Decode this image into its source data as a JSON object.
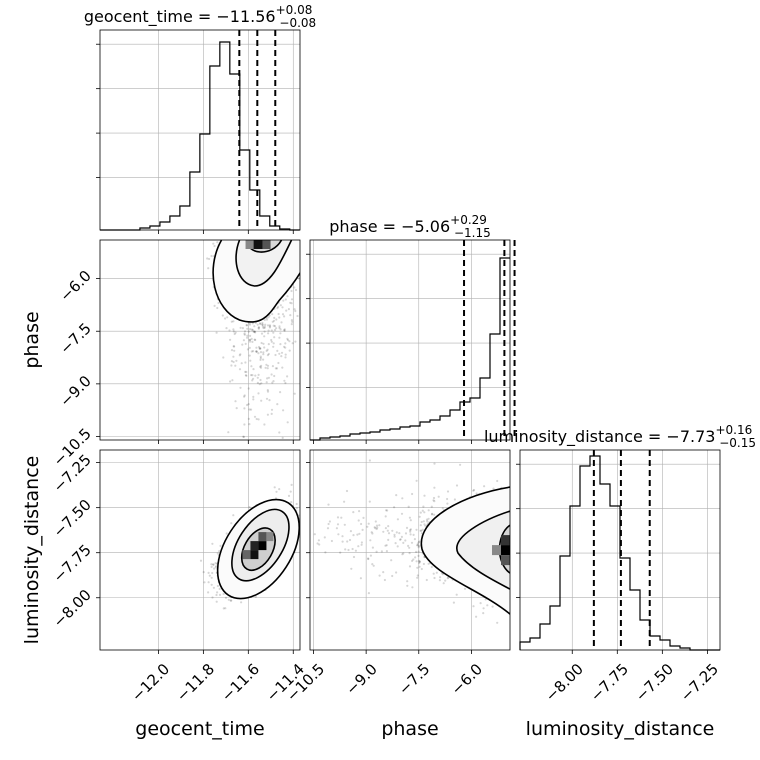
{
  "chart_data": {
    "type": "corner",
    "parameters": [
      "geocent_time",
      "phase",
      "luminosity_distance"
    ],
    "axis_labels": [
      "geocent_time",
      "phase",
      "luminosity_distance"
    ],
    "ranges": {
      "geocent_time": [
        -12.26,
        -11.37
      ],
      "phase": [
        -10.6,
        -4.9
      ],
      "luminosity_distance": [
        -8.29,
        -7.18
      ]
    },
    "ticks": {
      "geocent_time": [
        {
          "value": -12.0,
          "label": "−12.0"
        },
        {
          "value": -11.8,
          "label": "−11.8"
        },
        {
          "value": -11.6,
          "label": "−11.6"
        },
        {
          "value": -11.4,
          "label": "−11.4"
        }
      ],
      "phase": [
        {
          "value": -10.5,
          "label": "−10.5"
        },
        {
          "value": -9.0,
          "label": "−9.0"
        },
        {
          "value": -7.5,
          "label": "−7.5"
        },
        {
          "value": -6.0,
          "label": "−6.0"
        }
      ],
      "luminosity_distance": [
        {
          "value": -8.0,
          "label": "−8.00"
        },
        {
          "value": -7.75,
          "label": "−7.75"
        },
        {
          "value": -7.5,
          "label": "−7.50"
        },
        {
          "value": -7.25,
          "label": "−7.25"
        }
      ]
    },
    "summaries": {
      "geocent_time": {
        "name": "geocent_time",
        "median": "−11.56",
        "plus": "+0.08",
        "minus": "−0.08",
        "quantiles": [
          -11.64,
          -11.56,
          -11.48
        ]
      },
      "phase": {
        "name": "phase",
        "median": "−5.06",
        "plus": "+0.29",
        "minus": "−1.15",
        "quantiles": [
          -6.21,
          -5.06,
          -4.77
        ]
      },
      "luminosity_distance": {
        "name": "luminosity_distance",
        "median": "−7.73",
        "plus": "+0.16",
        "minus": "−0.15",
        "quantiles": [
          -7.88,
          -7.73,
          -7.57
        ]
      }
    },
    "histograms": {
      "geocent_time": {
        "start": -12.26,
        "step": 0.04444,
        "counts": [
          0,
          0,
          0,
          0,
          0.01,
          0.02,
          0.04,
          0.07,
          0.12,
          0.29,
          0.48,
          0.82,
          0.94,
          0.78,
          0.4,
          0.2,
          0.07,
          0.02,
          0.005,
          0.0
        ]
      },
      "phase": {
        "start": -10.6,
        "step": 0.285,
        "counts": [
          0,
          0.01,
          0.015,
          0.02,
          0.03,
          0.035,
          0.04,
          0.05,
          0.055,
          0.065,
          0.07,
          0.09,
          0.1,
          0.12,
          0.15,
          0.19,
          0.21,
          0.31,
          0.53,
          0.91
        ]
      },
      "luminosity_distance": {
        "start": -8.29,
        "step": 0.0555,
        "counts": [
          0.04,
          0.06,
          0.13,
          0.22,
          0.47,
          0.72,
          0.92,
          0.97,
          0.83,
          0.72,
          0.46,
          0.3,
          0.15,
          0.07,
          0.05,
          0.02,
          0.01,
          0.0,
          0.0,
          0.0
        ]
      }
    }
  }
}
